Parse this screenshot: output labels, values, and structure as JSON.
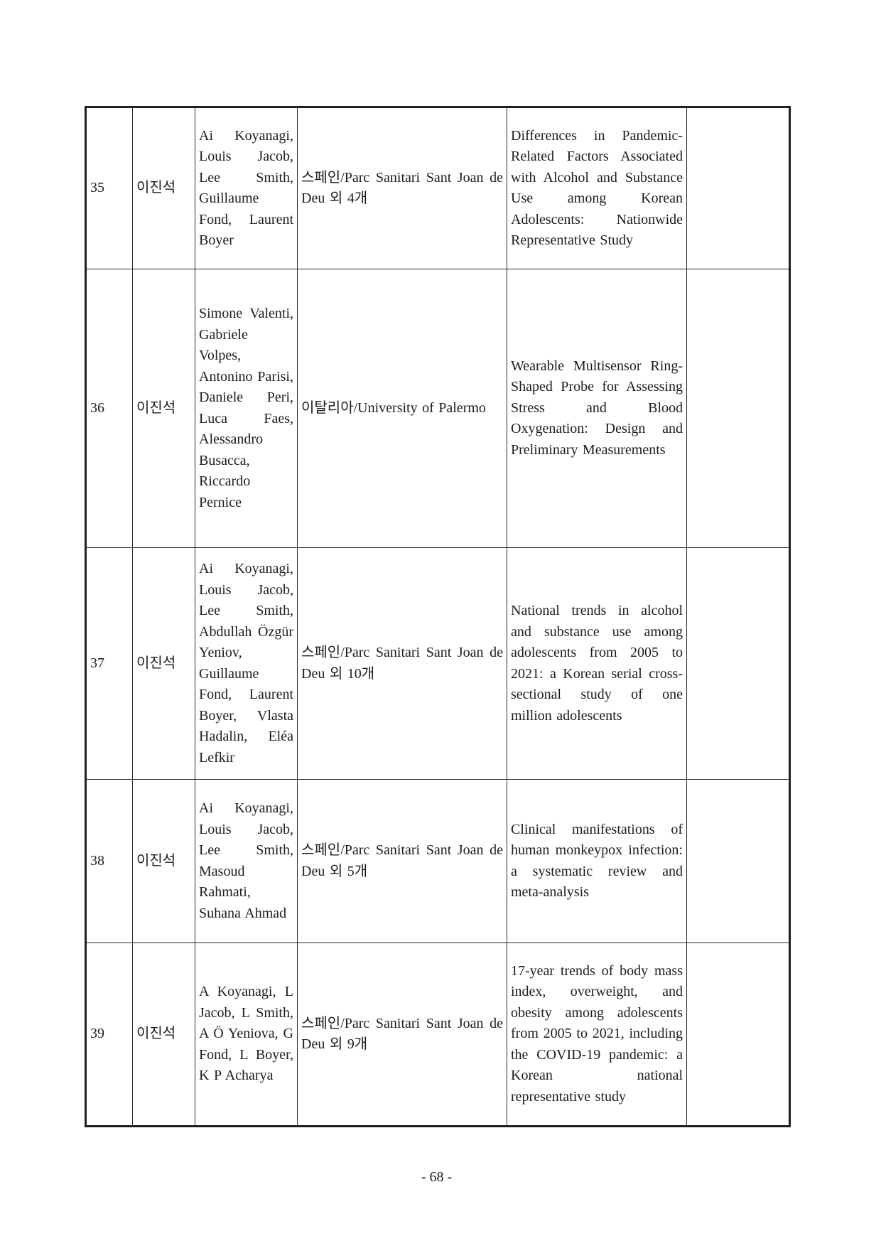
{
  "footer": {
    "page_number": "- 68 -"
  },
  "table": {
    "rows": [
      {
        "no": "35",
        "name": "이진석",
        "authors": "Ai Koyanagi, Louis Jacob, Lee Smith, Guillaume Fond, Laurent Boyer",
        "affiliation": "스페인/Parc Sanitari Sant Joan de Deu 외 4개",
        "title": "Differences in Pandemic-Related Factors Associated with Alcohol and Substance Use among Korean Adolescents: Nationwide Representative Study",
        "note": ""
      },
      {
        "no": "36",
        "name": "이진석",
        "authors": "Simone Valenti, Gabriele Volpes, Antonino Parisi, Daniele Peri, Luca Faes, Alessandro Busacca, Riccardo Pernice",
        "affiliation": "이탈리아/University of Palermo",
        "title": "Wearable Multisensor Ring-Shaped Probe for Assessing Stress and Blood Oxygenation: Design and Preliminary Measurements",
        "note": ""
      },
      {
        "no": "37",
        "name": "이진석",
        "authors": "Ai Koyanagi, Louis Jacob, Lee Smith, Abdullah Özgür Yeniov, Guillaume Fond, Laurent Boyer, Vlasta Hadalin, Eléa Lefkir",
        "affiliation": "스페인/Parc Sanitari Sant Joan de Deu 외 10개",
        "title": "National trends in alcohol and substance use among adolescents from 2005 to 2021: a Korean serial cross-sectional study of one million adolescents",
        "note": ""
      },
      {
        "no": "38",
        "name": "이진석",
        "authors": "Ai Koyanagi, Louis Jacob, Lee Smith, Masoud Rahmati, Suhana Ahmad",
        "affiliation": "스페인/Parc Sanitari Sant Joan de Deu 외 5개",
        "title": "Clinical manifestations of human monkeypox infection: a systematic review and meta-analysis",
        "note": ""
      },
      {
        "no": "39",
        "name": "이진석",
        "authors": "A Koyanagi, L Jacob, L Smith, A Ö Yeniova, G Fond, L Boyer, K P Acharya",
        "affiliation": "스페인/Parc Sanitari Sant Joan de Deu 외 9개",
        "title": "17-year trends of body mass index, overweight, and obesity among adolescents from 2005 to 2021, including the COVID-19 pandemic: a Korean national representative study",
        "note": ""
      }
    ]
  }
}
